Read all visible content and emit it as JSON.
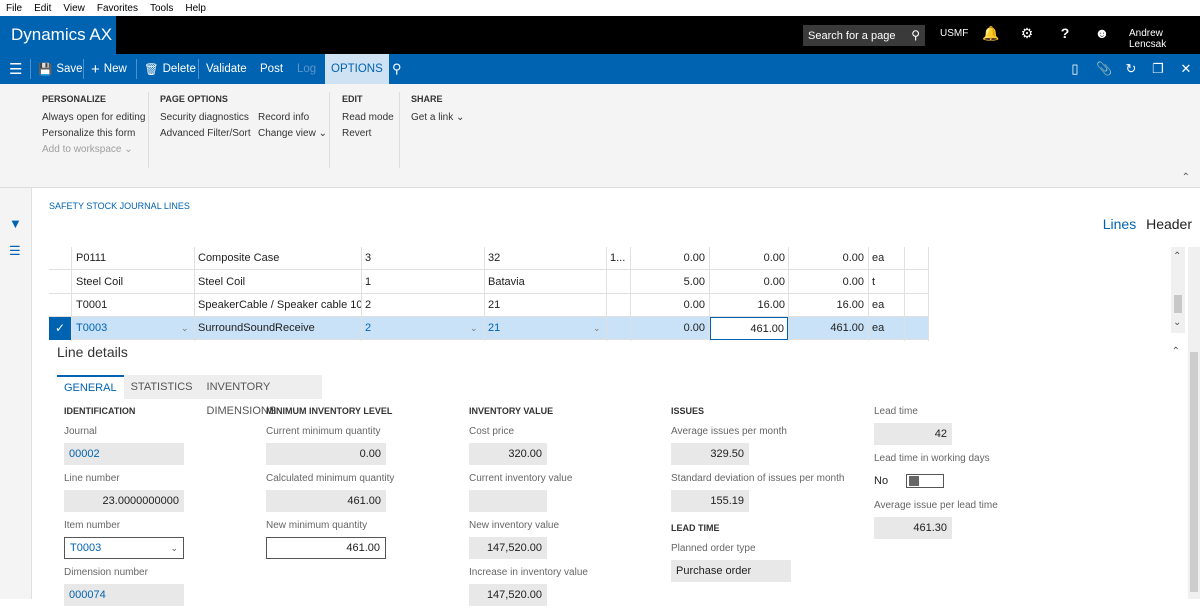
{
  "menubar": [
    "File",
    "Edit",
    "View",
    "Favorites",
    "Tools",
    "Help"
  ],
  "app": {
    "title": "Dynamics AX",
    "search_placeholder": "Search for a page",
    "company": "USMF",
    "user": "Andrew Lencsak"
  },
  "actionpane": {
    "save": "Save",
    "new": "New",
    "delete": "Delete",
    "validate": "Validate",
    "post": "Post",
    "log": "Log",
    "options": "OPTIONS"
  },
  "ribbon": {
    "personalize": {
      "heading": "PERSONALIZE",
      "items": [
        "Always open for editing",
        "Personalize this form",
        "Add to workspace"
      ]
    },
    "page_options": {
      "heading": "PAGE OPTIONS",
      "col1": [
        "Security diagnostics",
        "Advanced Filter/Sort"
      ],
      "col2": [
        "Record info",
        "Change view"
      ]
    },
    "edit": {
      "heading": "EDIT",
      "items": [
        "Read mode",
        "Revert"
      ]
    },
    "share": {
      "heading": "SHARE",
      "items": [
        "Get a link"
      ]
    }
  },
  "page": {
    "title": "SAFETY STOCK JOURNAL LINES",
    "view_lines": "Lines",
    "view_header": "Header"
  },
  "grid": {
    "rows": [
      [
        "P0111",
        "Composite Case",
        "3",
        "32",
        "1...",
        "0.00",
        "0.00",
        "0.00",
        "ea"
      ],
      [
        "Steel Coil",
        "Steel Coil",
        "1",
        "Batavia",
        "",
        "5.00",
        "0.00",
        "0.00",
        "t"
      ],
      [
        "T0001",
        "SpeakerCable / Speaker cable 10",
        "2",
        "21",
        "",
        "0.00",
        "16.00",
        "16.00",
        "ea"
      ],
      [
        "T0003",
        "SurroundSoundReceive",
        "2",
        "21",
        "",
        "0.00",
        "461.00",
        "461.00",
        "ea"
      ]
    ]
  },
  "line_details": {
    "title": "Line details",
    "tabs": [
      "GENERAL",
      "STATISTICS",
      "INVENTORY DIMENSIONS"
    ],
    "identification": {
      "heading": "IDENTIFICATION",
      "journal_label": "Journal",
      "journal": "00002",
      "line_label": "Line number",
      "line": "23.0000000000",
      "item_label": "Item number",
      "item": "T0003",
      "dim_label": "Dimension number",
      "dim": "000074"
    },
    "min_level": {
      "heading": "MINIMUM INVENTORY LEVEL",
      "current_label": "Current minimum quantity",
      "current": "0.00",
      "calc_label": "Calculated minimum quantity",
      "calc": "461.00",
      "new_label": "New minimum quantity",
      "new": "461.00"
    },
    "inv_value": {
      "heading": "INVENTORY VALUE",
      "cost_label": "Cost price",
      "cost": "320.00",
      "current_label": "Current inventory value",
      "current": "",
      "new_label": "New inventory value",
      "new": "147,520.00",
      "increase_label": "Increase in inventory value",
      "increase": "147,520.00"
    },
    "issues": {
      "heading": "ISSUES",
      "avg_label": "Average issues per month",
      "avg": "329.50",
      "std_label": "Standard deviation of issues per month",
      "std": "155.19",
      "lead_heading": "LEAD TIME",
      "planned_label": "Planned order type",
      "planned": "Purchase order"
    },
    "lead": {
      "lead_label": "Lead time",
      "lead": "42",
      "working_label": "Lead time in working days",
      "working": "No",
      "avg_lead_label": "Average issue per lead time",
      "avg_lead": "461.30"
    }
  }
}
